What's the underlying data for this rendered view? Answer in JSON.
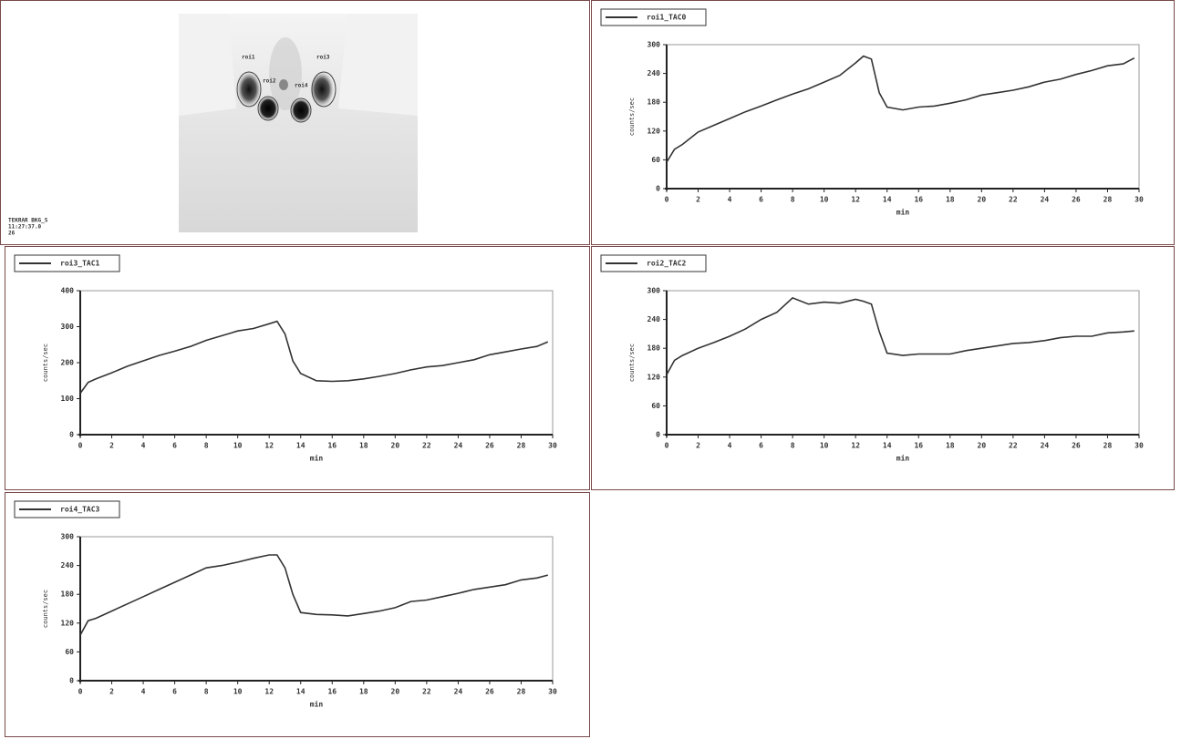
{
  "image_panel": {
    "roi_labels": [
      "roi1",
      "roi2",
      "roi4",
      "roi3"
    ],
    "caption": [
      "TEKRAR BKG_S",
      "11:27:37.0",
      "26"
    ]
  },
  "chart_data": [
    {
      "type": "line",
      "xlabel": "min",
      "ylabel": "counts/sec",
      "x": [
        0,
        0.5,
        1,
        2,
        3,
        4,
        5,
        6,
        7,
        8,
        9,
        10,
        11,
        12,
        12.5,
        13,
        13.5,
        14,
        15,
        16,
        17,
        18,
        19,
        20,
        21,
        22,
        23,
        24,
        25,
        26,
        27,
        28,
        29,
        29.7
      ],
      "series": [
        {
          "name": "roi1_TAC0",
          "color": "#333333",
          "values": [
            55,
            82,
            92,
            118,
            132,
            146,
            160,
            172,
            185,
            197,
            208,
            222,
            236,
            262,
            276,
            270,
            200,
            170,
            164,
            170,
            172,
            178,
            185,
            195,
            200,
            205,
            212,
            222,
            228,
            238,
            246,
            256,
            260,
            272
          ]
        }
      ],
      "xlim": [
        0,
        30
      ],
      "xticks": [
        0,
        2,
        4,
        6,
        8,
        10,
        12,
        14,
        16,
        18,
        20,
        22,
        24,
        26,
        28,
        30
      ],
      "ylim": [
        0,
        300
      ],
      "yticks": [
        0,
        60,
        120,
        180,
        240,
        300
      ],
      "grid": false
    },
    {
      "type": "line",
      "xlabel": "min",
      "ylabel": "counts/sec",
      "x": [
        0,
        0.5,
        1,
        2,
        3,
        4,
        5,
        6,
        7,
        8,
        9,
        10,
        11,
        12,
        12.5,
        13,
        13.5,
        14,
        15,
        16,
        17,
        18,
        19,
        20,
        21,
        22,
        23,
        24,
        25,
        26,
        27,
        28,
        29,
        29.7
      ],
      "series": [
        {
          "name": "roi3_TAC1",
          "color": "#333333",
          "values": [
            115,
            145,
            155,
            172,
            190,
            205,
            220,
            232,
            245,
            262,
            275,
            288,
            295,
            308,
            315,
            280,
            205,
            170,
            150,
            148,
            150,
            155,
            162,
            170,
            180,
            188,
            192,
            200,
            208,
            222,
            230,
            238,
            245,
            258
          ]
        }
      ],
      "xlim": [
        0,
        30
      ],
      "xticks": [
        0,
        2,
        4,
        6,
        8,
        10,
        12,
        14,
        16,
        18,
        20,
        22,
        24,
        26,
        28,
        30
      ],
      "ylim": [
        0,
        400
      ],
      "yticks": [
        0,
        100,
        200,
        300,
        400
      ],
      "grid": false
    },
    {
      "type": "line",
      "xlabel": "min",
      "ylabel": "counts/sec",
      "x": [
        0,
        0.5,
        1,
        2,
        3,
        4,
        5,
        6,
        7,
        8,
        9,
        10,
        11,
        12,
        12.5,
        13,
        13.5,
        14,
        15,
        16,
        17,
        18,
        19,
        20,
        21,
        22,
        23,
        24,
        25,
        26,
        27,
        28,
        29,
        29.7
      ],
      "series": [
        {
          "name": "roi2_TAC2",
          "color": "#333333",
          "values": [
            125,
            155,
            165,
            180,
            192,
            205,
            220,
            240,
            255,
            285,
            272,
            276,
            274,
            282,
            278,
            272,
            215,
            170,
            165,
            168,
            168,
            168,
            175,
            180,
            185,
            190,
            192,
            196,
            202,
            205,
            205,
            212,
            214,
            216
          ]
        }
      ],
      "xlim": [
        0,
        30
      ],
      "xticks": [
        0,
        2,
        4,
        6,
        8,
        10,
        12,
        14,
        16,
        18,
        20,
        22,
        24,
        26,
        28,
        30
      ],
      "ylim": [
        0,
        300
      ],
      "yticks": [
        0,
        60,
        120,
        180,
        240,
        300
      ],
      "grid": false
    },
    {
      "type": "line",
      "xlabel": "min",
      "ylabel": "counts/sec",
      "x": [
        0,
        0.5,
        1,
        2,
        3,
        4,
        5,
        6,
        7,
        8,
        9,
        10,
        11,
        12,
        12.5,
        13,
        13.5,
        14,
        15,
        16,
        17,
        18,
        19,
        20,
        21,
        22,
        23,
        24,
        25,
        26,
        27,
        28,
        29,
        29.7
      ],
      "series": [
        {
          "name": "roi4_TAC3",
          "color": "#333333",
          "values": [
            95,
            125,
            130,
            145,
            160,
            175,
            190,
            205,
            220,
            235,
            240,
            247,
            255,
            262,
            262,
            235,
            180,
            142,
            138,
            137,
            135,
            140,
            145,
            152,
            165,
            168,
            175,
            182,
            190,
            195,
            200,
            210,
            214,
            220
          ]
        }
      ],
      "xlim": [
        0,
        30
      ],
      "xticks": [
        0,
        2,
        4,
        6,
        8,
        10,
        12,
        14,
        16,
        18,
        20,
        22,
        24,
        26,
        28,
        30
      ],
      "ylim": [
        0,
        300
      ],
      "yticks": [
        0,
        60,
        120,
        180,
        240,
        300
      ],
      "grid": false
    }
  ]
}
